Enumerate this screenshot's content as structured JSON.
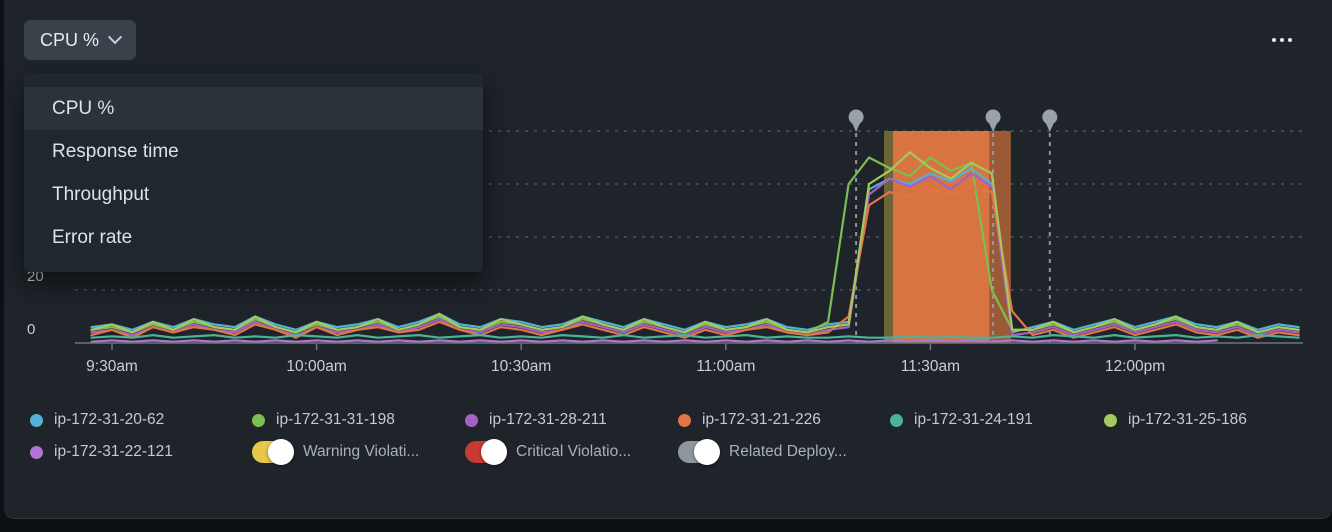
{
  "toolbar": {
    "metric_dropdown_label": "CPU %",
    "overflow_icon": "ellipsis-horizontal-icon"
  },
  "dropdown_menu": {
    "items": [
      {
        "label": "CPU %",
        "selected": true
      },
      {
        "label": "Response time",
        "selected": false
      },
      {
        "label": "Throughput",
        "selected": false
      },
      {
        "label": "Error rate",
        "selected": false
      }
    ]
  },
  "chart_data": {
    "type": "line",
    "ylabel": "CPU %",
    "x_axis": {
      "unit": "minutes after 9:30am",
      "start_t": -3,
      "step_t": 3,
      "ticks": [
        {
          "label": "9:30am",
          "t": 0
        },
        {
          "label": "10:00am",
          "t": 30
        },
        {
          "label": "10:30am",
          "t": 60
        },
        {
          "label": "11:00am",
          "t": 90
        },
        {
          "label": "11:30am",
          "t": 120
        },
        {
          "label": "12:00pm",
          "t": 150
        }
      ]
    },
    "y_axis": {
      "unit": "%",
      "min": 0,
      "max": 80,
      "gridlines": [
        20,
        40,
        60,
        80
      ],
      "tick_labels": [
        {
          "label": "20",
          "v": 20
        },
        {
          "label": "0",
          "v": 0
        }
      ]
    },
    "series": [
      {
        "name": "ip-172-31-20-62",
        "color": "#52b0d9",
        "values": [
          6,
          7,
          5,
          8,
          6,
          9,
          7,
          6,
          10,
          7,
          5,
          8,
          6,
          7,
          9,
          6,
          8,
          11,
          7,
          6,
          9,
          8,
          6,
          7,
          10,
          8,
          6,
          9,
          7,
          5,
          8,
          6,
          7,
          9,
          6,
          5,
          7,
          8,
          58,
          62,
          60,
          64,
          61,
          66,
          60,
          4,
          6,
          8,
          5,
          7,
          9,
          6,
          8,
          10,
          7,
          6,
          8,
          5,
          7,
          6
        ]
      },
      {
        "name": "ip-172-31-31-198",
        "color": "#7dbd54",
        "values": [
          5,
          6,
          4,
          7,
          5,
          8,
          6,
          5,
          9,
          6,
          4,
          7,
          5,
          6,
          8,
          5,
          7,
          10,
          6,
          5,
          8,
          7,
          5,
          6,
          9,
          7,
          5,
          8,
          6,
          4,
          7,
          5,
          6,
          8,
          5,
          4,
          8,
          60,
          70,
          66,
          63,
          70,
          65,
          68,
          20,
          5,
          5,
          7,
          4,
          6,
          8,
          5,
          7,
          9,
          6,
          5,
          7,
          4,
          6,
          5
        ]
      },
      {
        "name": "ip-172-31-28-211",
        "color": "#a562c6",
        "values": [
          4,
          5,
          3,
          6,
          4,
          7,
          5,
          4,
          8,
          5,
          3,
          6,
          4,
          5,
          7,
          4,
          6,
          9,
          5,
          4,
          7,
          6,
          4,
          5,
          8,
          6,
          4,
          7,
          5,
          3,
          6,
          4,
          5,
          7,
          4,
          3,
          5,
          6,
          56,
          62,
          59,
          63,
          58,
          64,
          59,
          3,
          4,
          6,
          3,
          5,
          7,
          4,
          6,
          8,
          5,
          4,
          6,
          3,
          5,
          4
        ]
      },
      {
        "name": "ip-172-31-21-226",
        "color": "#e4724a",
        "values": [
          3,
          5,
          2,
          6,
          4,
          6,
          5,
          3,
          7,
          5,
          2,
          6,
          3,
          5,
          6,
          4,
          5,
          8,
          5,
          3,
          6,
          5,
          3,
          5,
          7,
          5,
          3,
          6,
          4,
          2,
          5,
          3,
          5,
          6,
          4,
          3,
          4,
          10,
          52,
          57,
          55,
          58,
          56,
          59,
          57,
          12,
          3,
          5,
          2,
          4,
          6,
          3,
          5,
          7,
          4,
          3,
          5,
          2,
          4,
          3
        ]
      },
      {
        "name": "ip-172-31-24-191",
        "color": "#4cb396",
        "values": [
          2,
          2.5,
          2,
          3,
          2,
          2.5,
          3,
          2,
          2.5,
          2,
          3,
          2.5,
          2,
          3,
          2,
          2.5,
          3,
          2,
          2.5,
          3,
          2,
          2.5,
          2,
          3,
          2.5,
          2,
          3,
          2,
          2.5,
          3,
          2,
          2.5,
          3,
          2,
          2.5,
          2,
          2,
          2.5,
          2,
          2,
          2.5,
          2,
          2.5,
          2,
          2,
          2.5,
          2,
          3,
          2.5,
          2,
          3,
          2,
          2.5,
          3,
          2,
          2.5,
          2,
          3,
          2.5,
          2
        ]
      },
      {
        "name": "ip-172-31-25-186",
        "color": "#a4ca5e",
        "values": [
          5,
          7,
          4,
          8,
          5,
          9,
          6,
          5,
          10,
          6,
          4,
          8,
          5,
          6,
          9,
          5,
          7,
          11,
          6,
          5,
          9,
          7,
          5,
          6,
          10,
          7,
          5,
          9,
          6,
          4,
          8,
          5,
          6,
          9,
          5,
          4,
          6,
          7,
          60,
          65,
          72,
          66,
          62,
          68,
          64,
          5,
          5,
          8,
          4,
          6,
          9,
          5,
          7,
          10,
          6,
          5,
          8,
          4,
          6,
          5
        ]
      },
      {
        "name": "ip-172-31-22-121",
        "color": "#b273d2",
        "values": [
          0.5,
          1,
          0.5,
          1,
          0.5,
          1,
          0.5,
          1,
          0.5,
          1,
          0.5,
          1,
          0.5,
          1,
          0.5,
          1,
          0.5,
          1,
          0.5,
          1,
          0.5,
          1,
          0.5,
          1,
          0.5,
          1,
          0.5,
          1,
          0.5,
          1,
          0.5,
          1,
          0.5,
          1,
          0.5,
          1,
          0.5,
          1,
          0.5,
          1,
          0.5,
          1,
          0.5,
          1,
          0.5,
          1,
          0.5,
          1,
          0.5,
          1,
          0.5,
          1,
          0.5,
          1,
          0.5,
          1
        ]
      }
    ],
    "violation_bands": [
      {
        "kind": "warning",
        "t0": 113.2,
        "t1": 114.5,
        "color": "#6e6535"
      },
      {
        "kind": "warning-critical-overlap",
        "t0": 114.5,
        "t1": 128.7,
        "color": "#d8743f"
      },
      {
        "kind": "critical",
        "t0": 128.7,
        "t1": 131.8,
        "color": "#9a5a36"
      }
    ],
    "deployment_markers": [
      {
        "t": 109.1
      },
      {
        "t": 129.2
      },
      {
        "t": 137.5
      }
    ],
    "marker_color": "#9aa1a8",
    "grid_color": "#565d64",
    "axis_color": "#6e757c"
  },
  "legend": {
    "hosts": [
      {
        "name": "ip-172-31-20-62",
        "color": "#52b0d9"
      },
      {
        "name": "ip-172-31-31-198",
        "color": "#7dbd54"
      },
      {
        "name": "ip-172-31-28-211",
        "color": "#a562c6"
      },
      {
        "name": "ip-172-31-21-226",
        "color": "#e4724a"
      },
      {
        "name": "ip-172-31-24-191",
        "color": "#4cb396"
      },
      {
        "name": "ip-172-31-25-186",
        "color": "#a4ca5e"
      },
      {
        "name": "ip-172-31-22-121",
        "color": "#b273d2"
      }
    ],
    "toggles": [
      {
        "label": "Warning Violati...",
        "color": "#e7c64c",
        "on": true
      },
      {
        "label": "Critical Violatio...",
        "color": "#c93a31",
        "on": true
      },
      {
        "label": "Related Deploy...",
        "color": "#8f969c",
        "on": true
      }
    ]
  }
}
